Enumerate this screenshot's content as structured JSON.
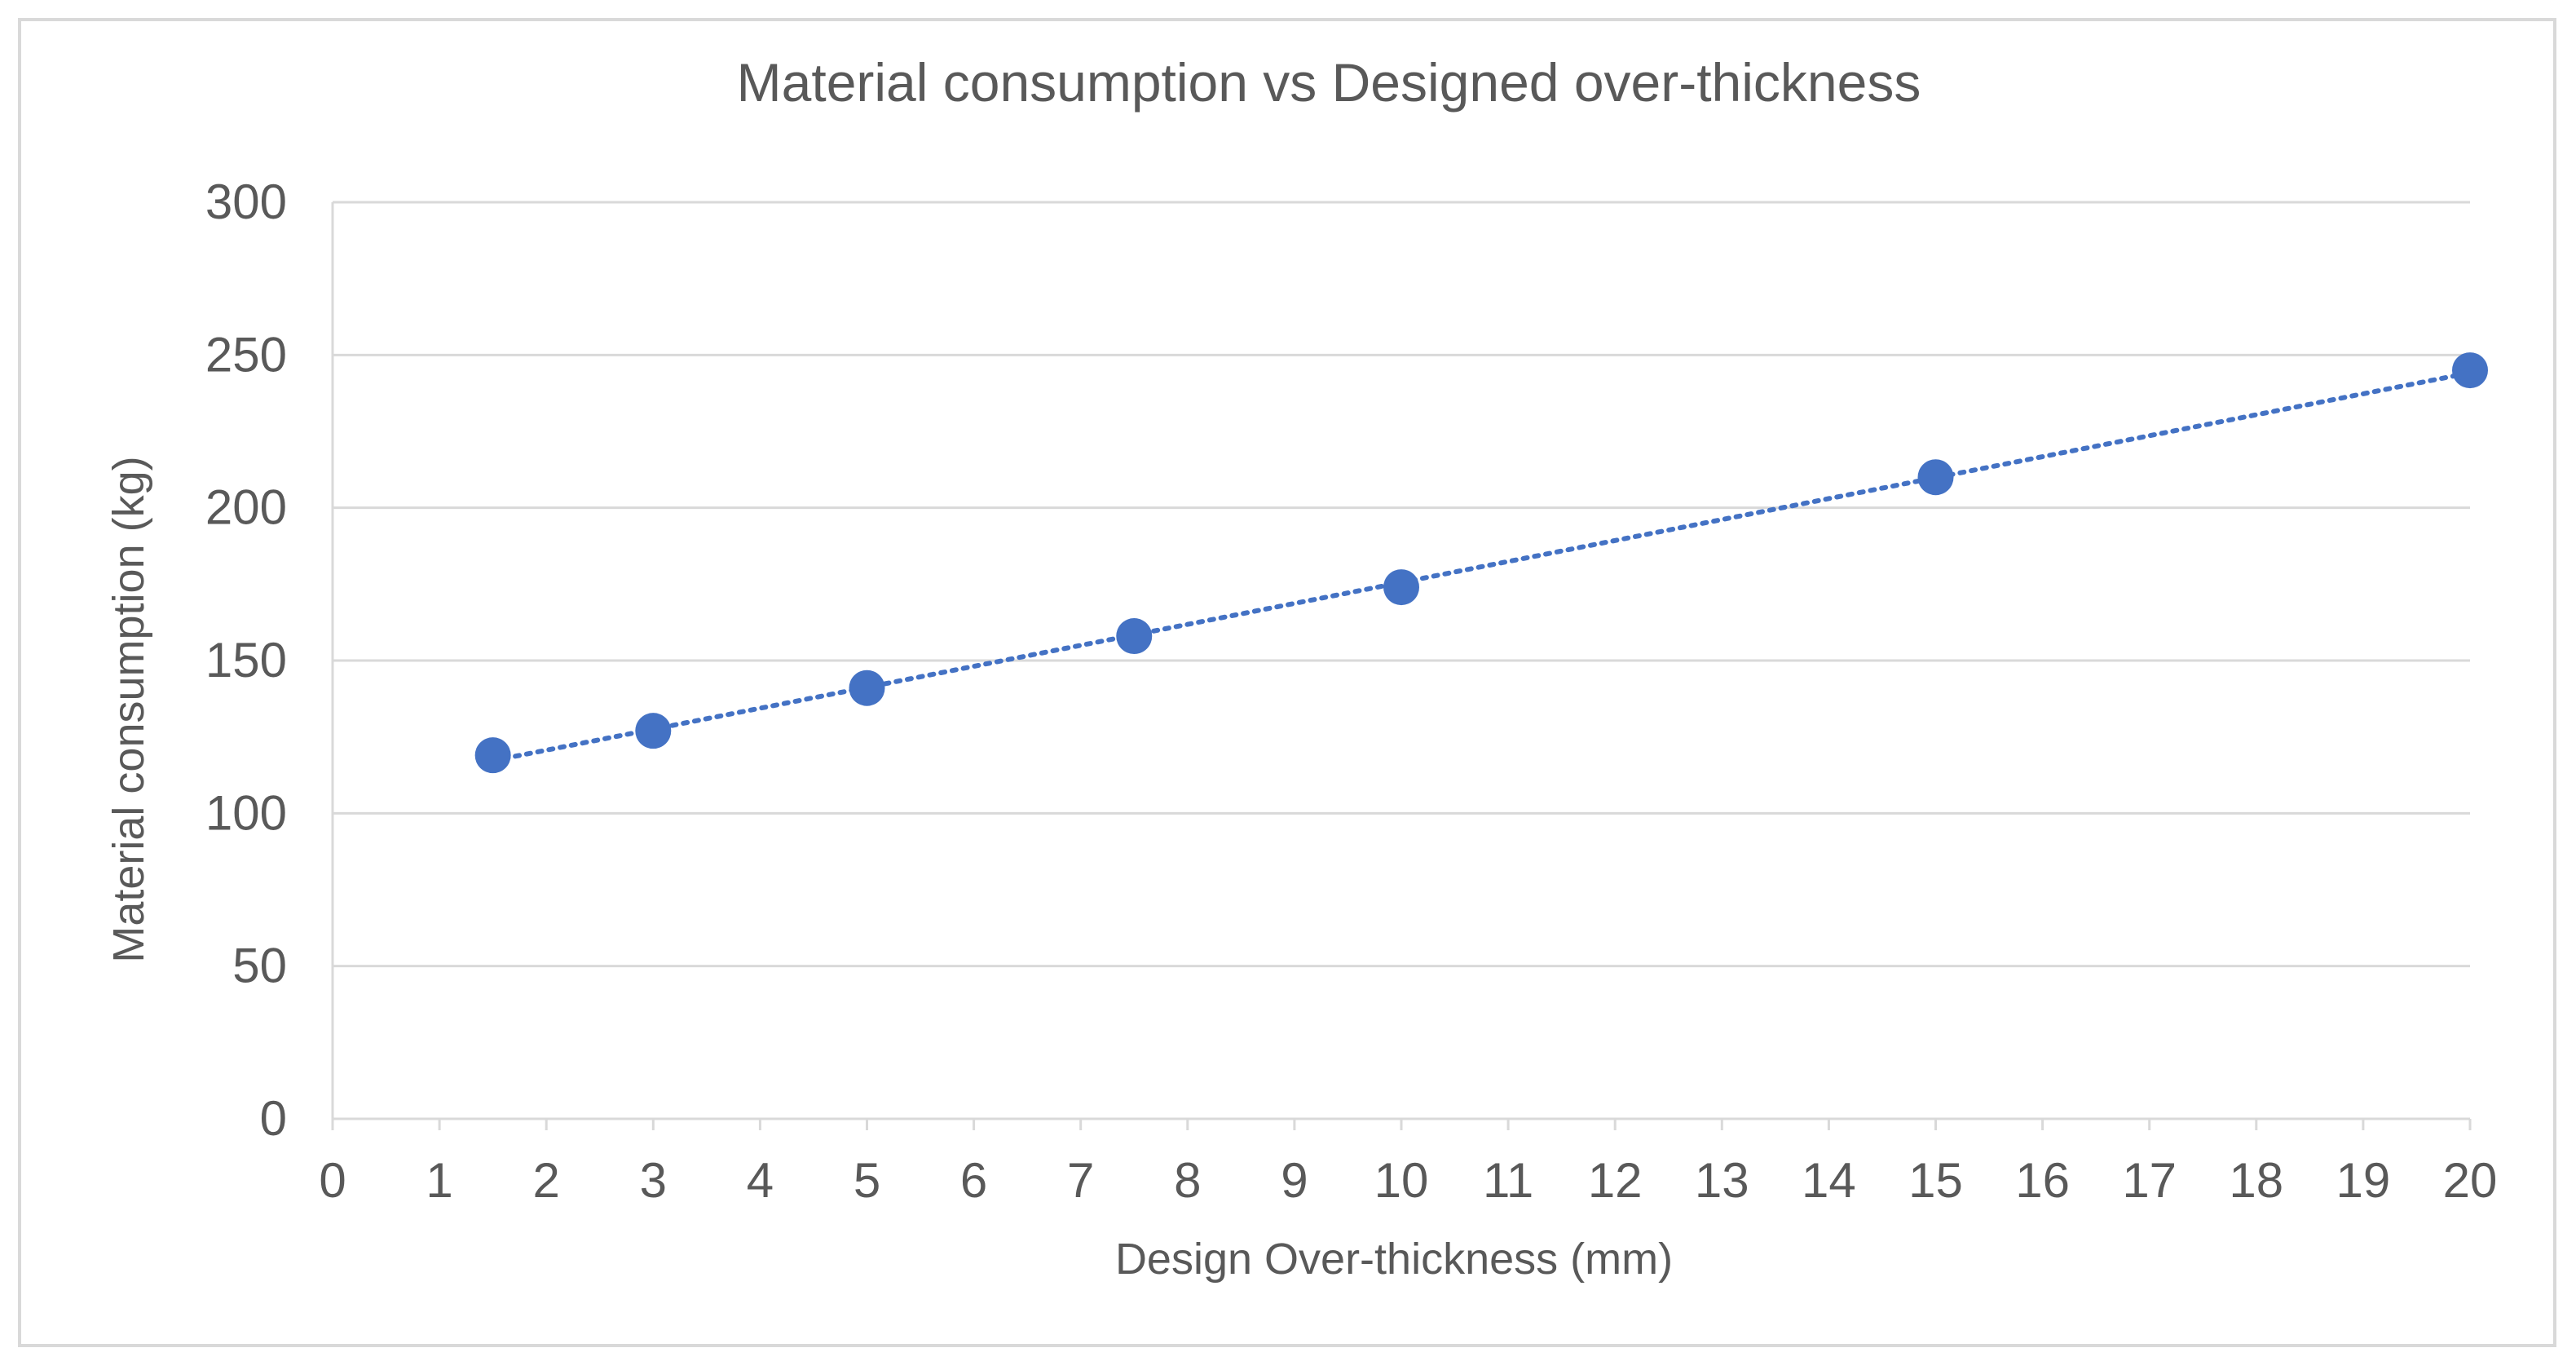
{
  "chart_data": {
    "type": "scatter",
    "title": "Material consumption vs Designed over-thickness",
    "xlabel": "Design  Over-thickness  (mm)",
    "ylabel": "Material consumption  (kg)",
    "xlim": [
      0,
      20
    ],
    "ylim": [
      0,
      300
    ],
    "x_ticks": [
      0,
      1,
      2,
      3,
      4,
      5,
      6,
      7,
      8,
      9,
      10,
      11,
      12,
      13,
      14,
      15,
      16,
      17,
      18,
      19,
      20
    ],
    "y_ticks": [
      0,
      50,
      100,
      150,
      200,
      250,
      300
    ],
    "grid": true,
    "series": [
      {
        "name": "Material consumption",
        "x": [
          1.5,
          3,
          5,
          7.5,
          10,
          15,
          20
        ],
        "y": [
          119,
          127,
          141,
          158,
          174,
          210,
          245
        ],
        "color": "#4472c4",
        "trendline": "linear-dotted"
      }
    ]
  }
}
